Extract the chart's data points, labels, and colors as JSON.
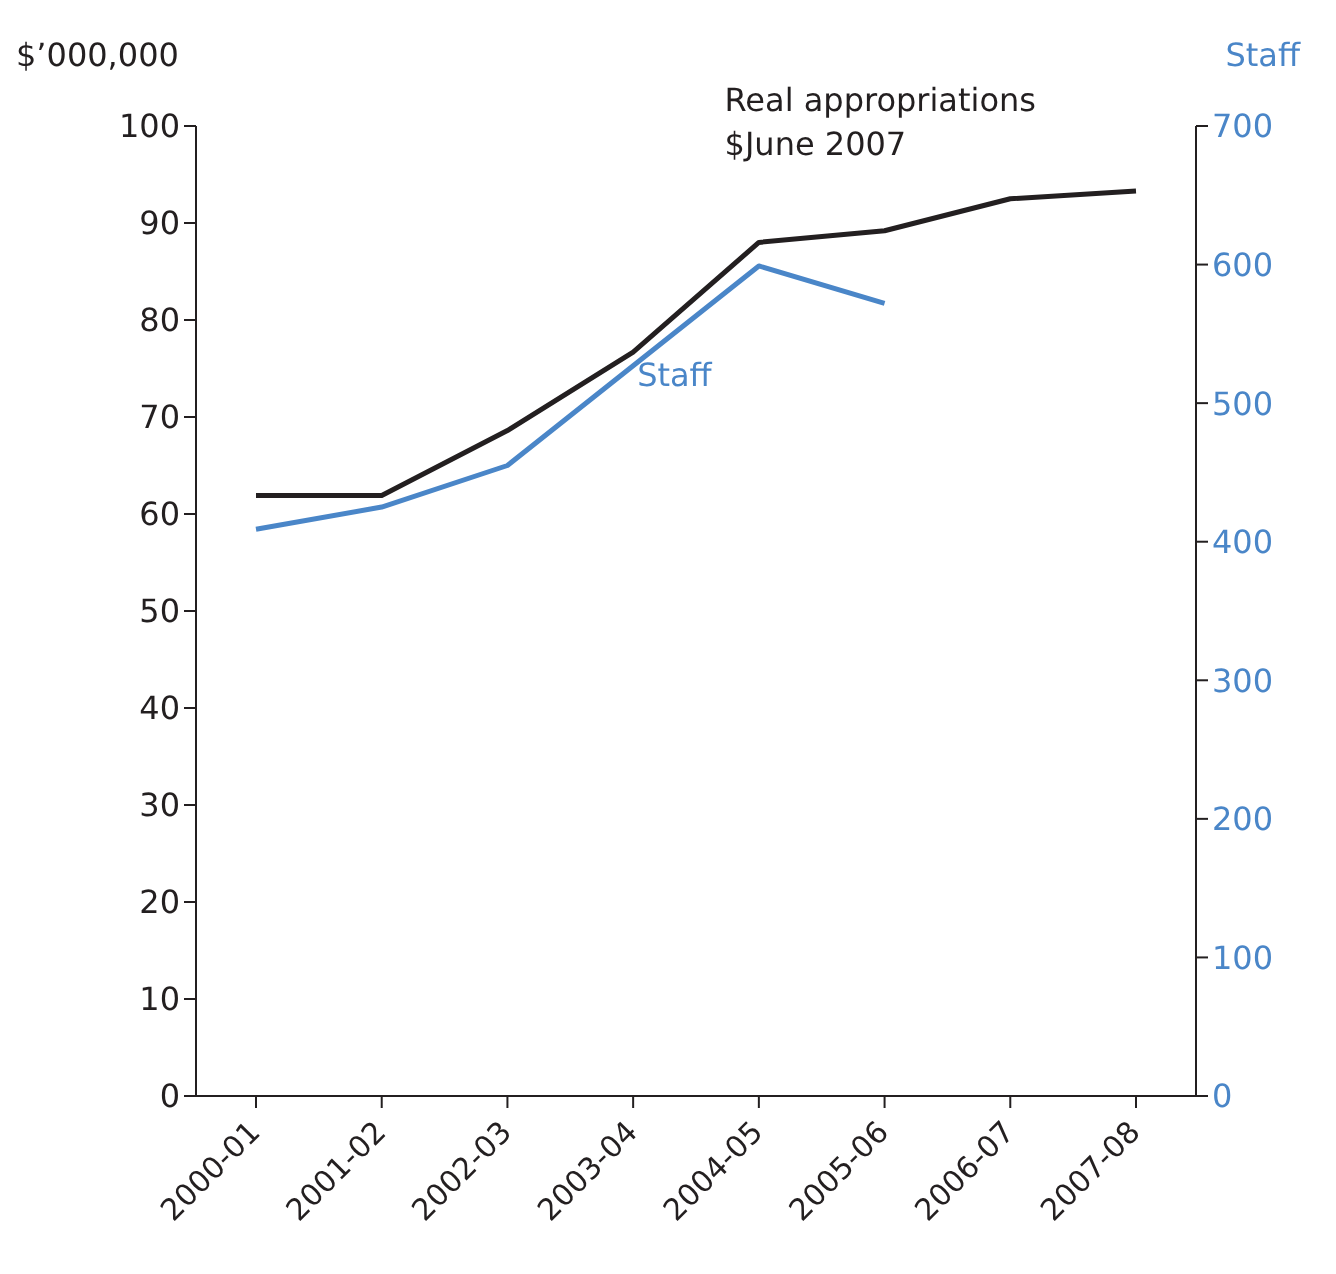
{
  "chart_data": {
    "type": "line",
    "categories": [
      "2000-01",
      "2001-02",
      "2002-03",
      "2003-04",
      "2004-05",
      "2005-06",
      "2006-07",
      "2007-08"
    ],
    "series": [
      {
        "name": "Real appropriations $June 2007",
        "color": "#231f20",
        "values": [
          61.9,
          61.9,
          68.6,
          76.7,
          88.0,
          89.2,
          92.5,
          93.3
        ]
      },
      {
        "name": "Staff",
        "color": "#4a86c8",
        "axis": "y2",
        "values": [
          409,
          425,
          455,
          527,
          599,
          572,
          null,
          null
        ]
      }
    ],
    "ylabel": "$’000,000",
    "y2label": "Staff",
    "ylim": [
      0,
      100
    ],
    "yticks": [
      0,
      10,
      20,
      30,
      40,
      50,
      60,
      70,
      80,
      90,
      100
    ],
    "y2lim": [
      0,
      700
    ],
    "y2ticks": [
      0,
      100,
      200,
      300,
      400,
      500,
      600,
      700
    ],
    "grid": false,
    "legend": false,
    "marker": "none",
    "line_style": "solid"
  }
}
